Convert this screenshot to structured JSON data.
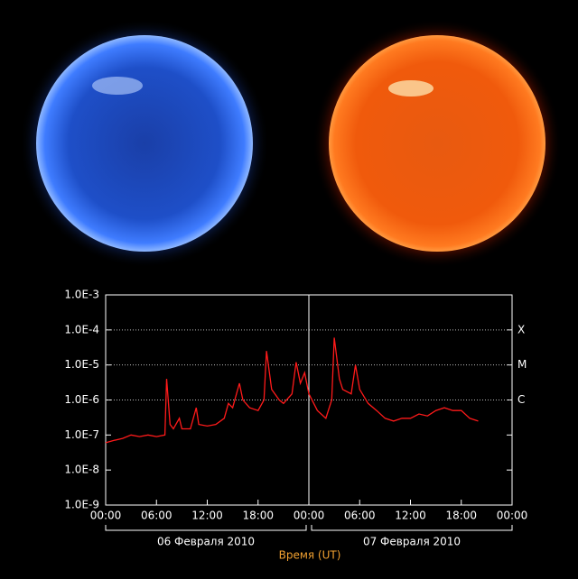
{
  "chart_data": {
    "type": "line",
    "log": true,
    "color": "#ff1a1a",
    "xlabel": "Время (UT)",
    "day_labels": [
      "06 Февраля 2010",
      "07 Февраля 2010"
    ],
    "day_boundary": 24,
    "xlim": [
      0,
      48
    ],
    "xticks": [
      {
        "value": 0,
        "label": "00:00"
      },
      {
        "value": 6,
        "label": "06:00"
      },
      {
        "value": 12,
        "label": "12:00"
      },
      {
        "value": 18,
        "label": "18:00"
      },
      {
        "value": 24,
        "label": "00:00"
      },
      {
        "value": 30,
        "label": "06:00"
      },
      {
        "value": 36,
        "label": "12:00"
      },
      {
        "value": 42,
        "label": "18:00"
      },
      {
        "value": 48,
        "label": "00:00"
      }
    ],
    "ylim": [
      1e-09,
      0.001
    ],
    "yticks": [
      {
        "value": 0.001,
        "label": "1.0E-3"
      },
      {
        "value": 0.0001,
        "label": "1.0E-4"
      },
      {
        "value": 1e-05,
        "label": "1.0E-5"
      },
      {
        "value": 1e-06,
        "label": "1.0E-6"
      },
      {
        "value": 1e-07,
        "label": "1.0E-7"
      },
      {
        "value": 1e-08,
        "label": "1.0E-8"
      },
      {
        "value": 1e-09,
        "label": "1.0E-9"
      }
    ],
    "class_levels": [
      {
        "value": 0.0001,
        "label": "X"
      },
      {
        "value": 1e-05,
        "label": "M"
      },
      {
        "value": 1e-06,
        "label": "C"
      }
    ],
    "x": [
      0,
      1,
      2,
      3,
      4,
      5,
      6,
      7,
      7.2,
      7.6,
      8,
      8.7,
      9,
      10,
      10.7,
      11,
      12,
      13,
      14,
      14.5,
      15,
      15.8,
      16.2,
      17,
      18,
      18.7,
      19,
      19.6,
      20.5,
      21,
      22,
      22.5,
      23,
      23.5,
      24,
      25,
      26,
      26.7,
      27,
      27.6,
      28,
      29,
      29.5,
      30,
      31,
      32,
      33,
      34,
      35,
      36,
      37,
      38,
      39,
      40,
      41,
      42,
      43,
      44
    ],
    "values": [
      6e-08,
      7e-08,
      8e-08,
      1e-07,
      9e-08,
      1e-07,
      9e-08,
      1e-07,
      4e-06,
      2e-07,
      1.5e-07,
      3e-07,
      1.5e-07,
      1.5e-07,
      6e-07,
      2e-07,
      1.8e-07,
      2e-07,
      3e-07,
      8e-07,
      6e-07,
      3e-06,
      1e-06,
      6e-07,
      5e-07,
      1e-06,
      2.5e-05,
      2e-06,
      1e-06,
      8e-07,
      1.5e-06,
      1.2e-05,
      3e-06,
      6e-06,
      1.5e-06,
      5e-07,
      3e-07,
      1e-06,
      6e-05,
      4e-06,
      2e-06,
      1.5e-06,
      1e-05,
      2e-06,
      8e-07,
      5e-07,
      3e-07,
      2.5e-07,
      3e-07,
      3e-07,
      4e-07,
      3.5e-07,
      5e-07,
      6e-07,
      5e-07,
      5e-07,
      3e-07,
      2.5e-07
    ]
  }
}
